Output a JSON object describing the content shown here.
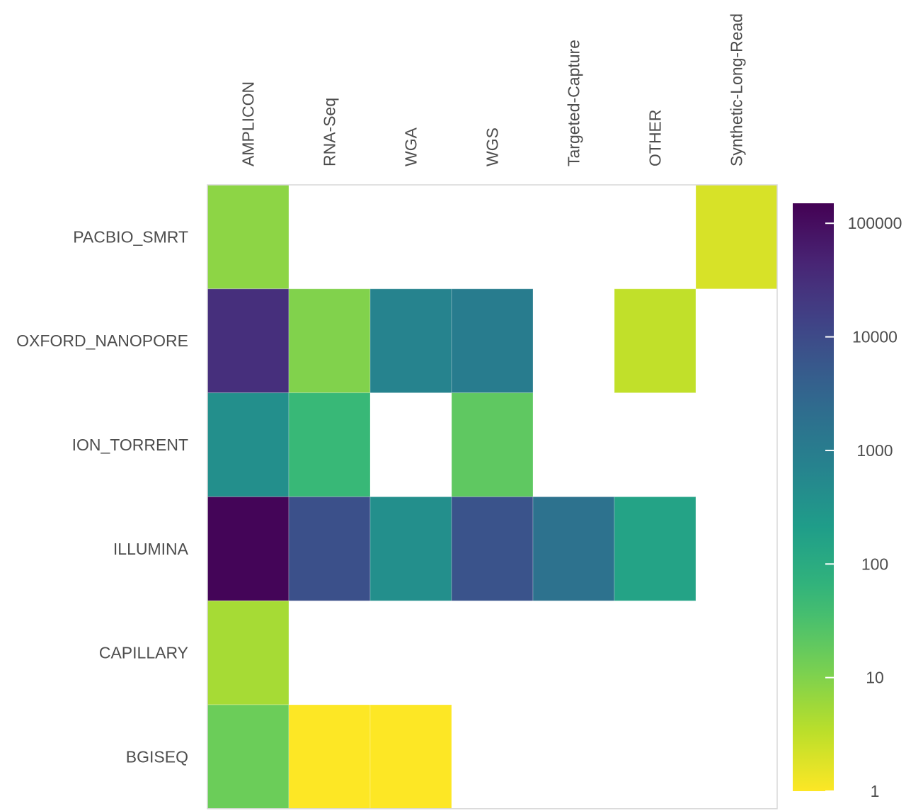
{
  "chart_data": {
    "type": "heatmap",
    "title": "",
    "xlabel": "",
    "ylabel": "",
    "columns": [
      "AMPLICON",
      "RNA-Seq",
      "WGA",
      "WGS",
      "Targeted-Capture",
      "OTHER",
      "Synthetic-Long-Read"
    ],
    "rows": [
      "PACBIO_SMRT",
      "OXFORD_NANOPORE",
      "ION_TORRENT",
      "ILLUMINA",
      "CAPILLARY",
      "BGISEQ"
    ],
    "values": [
      [
        8,
        null,
        null,
        null,
        null,
        null,
        2
      ],
      [
        30000,
        10,
        700,
        1000,
        null,
        3,
        null
      ],
      [
        400,
        50,
        null,
        20,
        null,
        null,
        null
      ],
      [
        130000,
        8000,
        400,
        7000,
        1700,
        150,
        null
      ],
      [
        5,
        null,
        null,
        null,
        null,
        null,
        null
      ],
      [
        15,
        1,
        1,
        null,
        null,
        null,
        null
      ]
    ],
    "color_scale": {
      "type": "log",
      "palette": "viridis-reversed",
      "min": 1,
      "max": 150000,
      "ticks": [
        1,
        10,
        100,
        1000,
        10000,
        100000
      ],
      "tick_labels": [
        "1",
        "10",
        "100",
        "1000",
        "10000",
        "100000"
      ],
      "colors": [
        "#fde725",
        "#b5de2b",
        "#6ece58",
        "#35b779",
        "#1f9e89",
        "#26828e",
        "#31688e",
        "#3e4989",
        "#482878",
        "#440154"
      ]
    },
    "grid": false,
    "legend": "right"
  }
}
